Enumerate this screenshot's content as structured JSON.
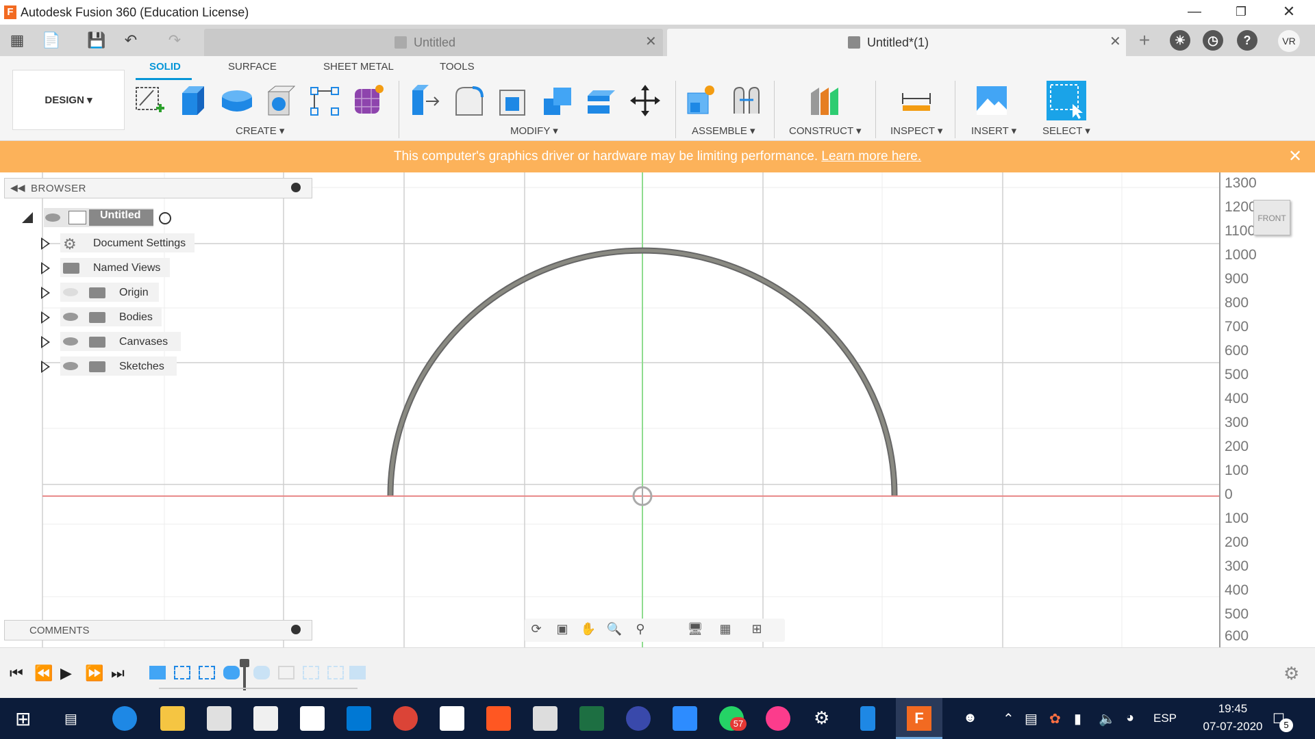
{
  "window": {
    "title": "Autodesk Fusion 360 (Education License)",
    "controls": [
      "minimize-icon",
      "restore-icon",
      "close-icon"
    ]
  },
  "tabs": [
    {
      "label": "Untitled",
      "active": false
    },
    {
      "label": "Untitled*(1)",
      "active": true
    }
  ],
  "user": {
    "initials": "VR"
  },
  "toolbar": {
    "workspace": "DESIGN",
    "mode_tabs": [
      "SOLID",
      "SURFACE",
      "SHEET METAL",
      "TOOLS"
    ],
    "active_mode": "SOLID",
    "groups": [
      "CREATE",
      "MODIFY",
      "ASSEMBLE",
      "CONSTRUCT",
      "INSPECT",
      "INSERT",
      "SELECT"
    ]
  },
  "banner": {
    "message": "This computer's graphics driver or hardware may be limiting performance.",
    "link": "Learn more here.",
    "color": "#fcb25a"
  },
  "browser": {
    "title": "BROWSER",
    "root": "Untitled",
    "items": [
      "Document Settings",
      "Named Views",
      "Origin",
      "Bodies",
      "Canvases",
      "Sketches"
    ]
  },
  "comments": {
    "title": "COMMENTS"
  },
  "ruler": {
    "ticks": [
      "1300",
      "1200",
      "1100",
      "1000",
      "900",
      "800",
      "700",
      "600",
      "500",
      "400",
      "300",
      "200",
      "100",
      "0",
      "100",
      "200",
      "300",
      "400",
      "500",
      "600"
    ]
  },
  "viewcube": {
    "face": "FRONT"
  },
  "colors": {
    "accent": "#0696d7",
    "x_axis": "#e88a8a",
    "y_axis": "#8fdc8f",
    "arc": "#7a7a72"
  },
  "taskbar": {
    "language": "ESP",
    "time": "19:45",
    "date": "07-07-2020",
    "whatsapp_badge": "57",
    "notification_badge": "5"
  }
}
